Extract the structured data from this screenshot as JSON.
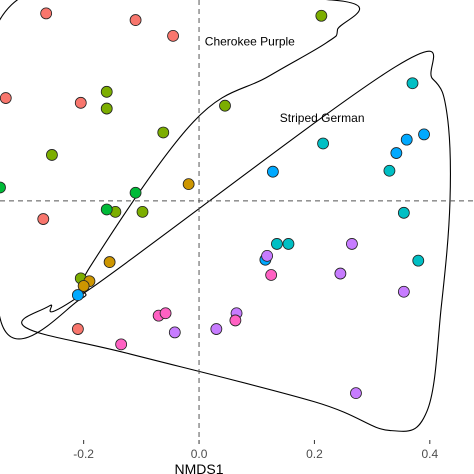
{
  "chart_data": {
    "type": "scatter",
    "xlabel": "NMDS1",
    "ylabel": "",
    "xlim": [
      -0.345,
      0.435
    ],
    "ylim": [
      -0.5,
      0.42
    ],
    "x_ticks": [
      -0.2,
      0.0,
      0.2,
      0.4
    ],
    "x_tick_labels": [
      "-0.2",
      "0.0",
      "0.2",
      "0.4"
    ],
    "reference_lines": {
      "x": 0,
      "y": 0,
      "style": "dashed"
    },
    "annotations": [
      {
        "text": "Cherokee Purple",
        "x": 0.01,
        "y": 0.325
      },
      {
        "text": "Striped German",
        "x": 0.14,
        "y": 0.165
      }
    ],
    "points": [
      {
        "x": -0.265,
        "y": 0.392,
        "color": "#F8766D"
      },
      {
        "x": -0.11,
        "y": 0.378,
        "color": "#F8766D"
      },
      {
        "x": -0.045,
        "y": 0.345,
        "color": "#F8766D"
      },
      {
        "x": -0.335,
        "y": 0.215,
        "color": "#F8766D"
      },
      {
        "x": -0.205,
        "y": 0.205,
        "color": "#F8766D"
      },
      {
        "x": -0.27,
        "y": -0.038,
        "color": "#F8766D"
      },
      {
        "x": -0.21,
        "y": -0.268,
        "color": "#F8766D"
      },
      {
        "x": 0.212,
        "y": 0.387,
        "color": "#7CAE00"
      },
      {
        "x": 0.045,
        "y": 0.199,
        "color": "#7CAE00"
      },
      {
        "x": -0.16,
        "y": 0.228,
        "color": "#7CAE00"
      },
      {
        "x": -0.16,
        "y": 0.193,
        "color": "#7CAE00"
      },
      {
        "x": -0.062,
        "y": 0.143,
        "color": "#7CAE00"
      },
      {
        "x": -0.255,
        "y": 0.096,
        "color": "#7CAE00"
      },
      {
        "x": -0.145,
        "y": -0.023,
        "color": "#7CAE00"
      },
      {
        "x": -0.098,
        "y": -0.023,
        "color": "#7CAE00"
      },
      {
        "x": -0.205,
        "y": -0.162,
        "color": "#7CAE00"
      },
      {
        "x": -0.16,
        "y": -0.018,
        "color": "#00BA38"
      },
      {
        "x": -0.11,
        "y": 0.017,
        "color": "#00BA38"
      },
      {
        "x": -0.345,
        "y": 0.028,
        "color": "#00BA38"
      },
      {
        "x": -0.018,
        "y": 0.035,
        "color": "#CD9600"
      },
      {
        "x": -0.155,
        "y": -0.128,
        "color": "#CD9600"
      },
      {
        "x": -0.19,
        "y": -0.168,
        "color": "#CD9600"
      },
      {
        "x": -0.2,
        "y": -0.178,
        "color": "#CD9600"
      },
      {
        "x": -0.21,
        "y": -0.197,
        "color": "#00A9FF"
      },
      {
        "x": 0.135,
        "y": -0.09,
        "color": "#00BFC4"
      },
      {
        "x": 0.155,
        "y": -0.09,
        "color": "#00BFC4"
      },
      {
        "x": 0.128,
        "y": 0.061,
        "color": "#00A9FF"
      },
      {
        "x": 0.215,
        "y": 0.12,
        "color": "#00BFC4"
      },
      {
        "x": 0.36,
        "y": 0.128,
        "color": "#00A9FF"
      },
      {
        "x": 0.342,
        "y": 0.1,
        "color": "#00A9FF"
      },
      {
        "x": 0.39,
        "y": 0.139,
        "color": "#00A9FF"
      },
      {
        "x": 0.37,
        "y": 0.246,
        "color": "#00BFC4"
      },
      {
        "x": 0.33,
        "y": 0.063,
        "color": "#00BFC4"
      },
      {
        "x": 0.355,
        "y": -0.025,
        "color": "#00BFC4"
      },
      {
        "x": 0.38,
        "y": -0.125,
        "color": "#00BFC4"
      },
      {
        "x": 0.115,
        "y": -0.123,
        "color": "#00A9FF"
      },
      {
        "x": 0.118,
        "y": -0.115,
        "color": "#C77CFF"
      },
      {
        "x": 0.265,
        "y": -0.09,
        "color": "#C77CFF"
      },
      {
        "x": 0.245,
        "y": -0.152,
        "color": "#C77CFF"
      },
      {
        "x": 0.355,
        "y": -0.19,
        "color": "#C77CFF"
      },
      {
        "x": 0.065,
        "y": -0.235,
        "color": "#C77CFF"
      },
      {
        "x": 0.03,
        "y": -0.268,
        "color": "#C77CFF"
      },
      {
        "x": -0.042,
        "y": -0.275,
        "color": "#C77CFF"
      },
      {
        "x": 0.272,
        "y": -0.402,
        "color": "#C77CFF"
      },
      {
        "x": 0.125,
        "y": -0.155,
        "color": "#FF61C3"
      },
      {
        "x": -0.07,
        "y": -0.24,
        "color": "#FF61C3"
      },
      {
        "x": -0.058,
        "y": -0.235,
        "color": "#FF61C3"
      },
      {
        "x": 0.063,
        "y": -0.25,
        "color": "#FF61C3"
      },
      {
        "x": -0.135,
        "y": -0.3,
        "color": "#FF61C3"
      }
    ],
    "hulls": [
      {
        "name": "Cherokee Purple",
        "points": [
          [
            -0.325,
            0.41
          ],
          [
            0.23,
            0.42
          ],
          [
            0.24,
            0.358
          ],
          [
            0.22,
            0.33
          ],
          [
            0.12,
            0.26
          ],
          [
            -0.01,
            0.165
          ],
          [
            -0.19,
            -0.14
          ],
          [
            -0.205,
            -0.205
          ],
          [
            -0.345,
            -0.245
          ]
        ]
      },
      {
        "name": "Striped German",
        "points": [
          [
            0.34,
            0.28
          ],
          [
            0.405,
            0.255
          ],
          [
            0.43,
            0.18
          ],
          [
            0.435,
            0.0
          ],
          [
            0.42,
            -0.22
          ],
          [
            0.395,
            -0.44
          ],
          [
            0.33,
            -0.48
          ],
          [
            0.2,
            -0.42
          ],
          [
            -0.12,
            -0.32
          ],
          [
            -0.3,
            -0.265
          ],
          [
            -0.26,
            -0.22
          ],
          [
            -0.19,
            -0.185
          ]
        ]
      }
    ]
  }
}
